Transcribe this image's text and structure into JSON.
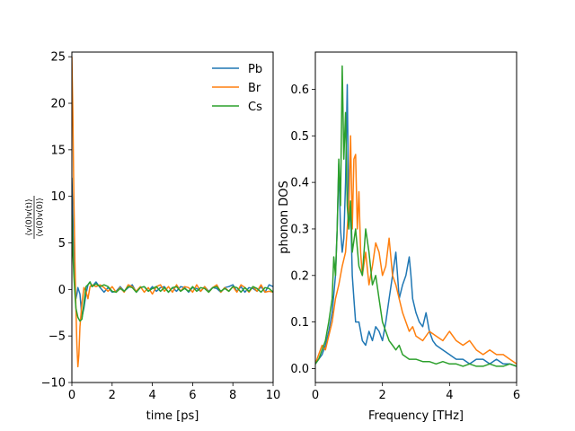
{
  "chart_data": [
    {
      "type": "line",
      "title": "",
      "xlabel": "time [ps]",
      "ylabel": "<v(0)v(t)> / <v(0)v(0)>",
      "ylabel_num": "⟨v(0)v(t)⟩",
      "ylabel_den": "⟨v(0)v(0)⟩",
      "xlim": [
        0,
        10
      ],
      "ylim": [
        -10,
        25.5
      ],
      "xticks": [
        0,
        2,
        4,
        6,
        8,
        10
      ],
      "yticks": [
        -10,
        -5,
        0,
        5,
        10,
        15,
        20,
        25
      ],
      "legend_position": "top-right",
      "series": [
        {
          "name": "Pb",
          "color": "#1f77b4",
          "x": [
            0,
            0.05,
            0.1,
            0.15,
            0.2,
            0.25,
            0.3,
            0.4,
            0.5,
            0.6,
            0.7,
            0.8,
            0.9,
            1.0,
            1.2,
            1.4,
            1.6,
            1.8,
            2.0,
            2.2,
            2.4,
            2.6,
            2.8,
            3.0,
            3.2,
            3.4,
            3.6,
            3.8,
            4.0,
            4.2,
            4.4,
            4.6,
            4.8,
            5.0,
            5.2,
            5.4,
            5.6,
            5.8,
            6.0,
            6.2,
            6.4,
            6.6,
            6.8,
            7.0,
            7.2,
            7.4,
            7.6,
            7.8,
            8.0,
            8.2,
            8.4,
            8.6,
            8.8,
            9.0,
            9.2,
            9.4,
            9.6,
            9.8,
            10.0
          ],
          "values": [
            12,
            8,
            3,
            0.5,
            -1.0,
            -0.5,
            0.2,
            -0.5,
            -3.0,
            -2.0,
            -0.5,
            0.5,
            0.8,
            0.3,
            0.8,
            0.2,
            -0.3,
            0.2,
            -0.3,
            -0.2,
            0.3,
            -0.2,
            0.2,
            0.5,
            -0.3,
            0.2,
            0.3,
            -0.2,
            0.3,
            -0.2,
            0.2,
            0.3,
            -0.3,
            0.2,
            -0.2,
            0.3,
            0.2,
            -0.3,
            0.2,
            0.1,
            -0.2,
            0.3,
            -0.2,
            0.2,
            0.1,
            -0.3,
            0.2,
            0.3,
            0.5,
            -0.2,
            0.3,
            -0.3,
            0.2,
            0.1,
            -0.2,
            0.3,
            -0.3,
            0.5,
            0.3
          ]
        },
        {
          "name": "Br",
          "color": "#ff7f0e",
          "x": [
            0,
            0.05,
            0.1,
            0.15,
            0.2,
            0.25,
            0.3,
            0.35,
            0.4,
            0.5,
            0.6,
            0.7,
            0.8,
            0.9,
            1.0,
            1.2,
            1.4,
            1.6,
            1.8,
            2.0,
            2.2,
            2.4,
            2.6,
            2.8,
            3.0,
            3.2,
            3.4,
            3.6,
            3.8,
            4.0,
            4.2,
            4.4,
            4.6,
            4.8,
            5.0,
            5.2,
            5.4,
            5.6,
            5.8,
            6.0,
            6.2,
            6.4,
            6.6,
            6.8,
            7.0,
            7.2,
            7.4,
            7.6,
            7.8,
            8.0,
            8.2,
            8.4,
            8.6,
            8.8,
            9.0,
            9.2,
            9.4,
            9.6,
            9.8,
            10.0
          ],
          "values": [
            25,
            19,
            10,
            3,
            -2,
            -6,
            -8.3,
            -7,
            -4,
            -1.5,
            0.2,
            -0.2,
            -1.0,
            0.3,
            0.5,
            0.3,
            0.5,
            0.2,
            -0.2,
            0.3,
            -0.3,
            0.2,
            -0.3,
            0.5,
            0.3,
            -0.2,
            0.3,
            -0.3,
            0.2,
            -0.5,
            0.3,
            0.5,
            -0.2,
            0.3,
            -0.3,
            0.5,
            -0.2,
            0.3,
            0.2,
            -0.3,
            0.5,
            -0.2,
            0.3,
            -0.3,
            0.2,
            0.5,
            -0.3,
            0.2,
            -0.2,
            0.3,
            -0.3,
            0.5,
            0.2,
            -0.3,
            0.3,
            -0.2,
            0.5,
            -0.3,
            -0.2,
            -0.3
          ]
        },
        {
          "name": "Cs",
          "color": "#2ca02c",
          "x": [
            0,
            0.05,
            0.1,
            0.15,
            0.2,
            0.3,
            0.4,
            0.5,
            0.6,
            0.7,
            0.8,
            0.9,
            1.0,
            1.2,
            1.4,
            1.6,
            1.8,
            2.0,
            2.2,
            2.4,
            2.6,
            2.8,
            3.0,
            3.2,
            3.4,
            3.6,
            3.8,
            4.0,
            4.2,
            4.4,
            4.6,
            4.8,
            5.0,
            5.2,
            5.4,
            5.6,
            5.8,
            6.0,
            6.2,
            6.4,
            6.6,
            6.8,
            7.0,
            7.2,
            7.4,
            7.6,
            7.8,
            8.0,
            8.2,
            8.4,
            8.6,
            8.8,
            9.0,
            9.2,
            9.4,
            9.6,
            9.8,
            10.0
          ],
          "values": [
            8,
            4,
            1.5,
            -0.5,
            -2.0,
            -3.0,
            -3.4,
            -3.2,
            -1.5,
            0.3,
            0.5,
            0.8,
            0.3,
            0.6,
            0.3,
            0.5,
            0.3,
            -0.2,
            -0.3,
            0.1,
            -0.2,
            0.3,
            0.2,
            -0.3,
            0.2,
            0.3,
            -0.2,
            0.1,
            0.3,
            -0.2,
            0.2,
            -0.3,
            0.2,
            0.3,
            -0.2,
            0.1,
            -0.2,
            0.3,
            -0.2,
            0.2,
            0.1,
            -0.3,
            0.2,
            0.3,
            -0.2,
            0.1,
            -0.2,
            0.3,
            0.2,
            -0.3,
            0.2,
            -0.2,
            0.3,
            0.1,
            -0.3,
            0.2,
            0.1,
            -0.3
          ]
        }
      ]
    },
    {
      "type": "line",
      "title": "",
      "xlabel": "Frequency [THz]",
      "ylabel": "phonon DOS",
      "xlim": [
        0,
        6
      ],
      "ylim": [
        -0.03,
        0.68
      ],
      "xticks": [
        0,
        2,
        4,
        6
      ],
      "yticks": [
        0.0,
        0.1,
        0.2,
        0.3,
        0.4,
        0.5,
        0.6
      ],
      "ytick_labels": [
        "0.0",
        "0.1",
        "0.2",
        "0.3",
        "0.4",
        "0.5",
        "0.6"
      ],
      "series": [
        {
          "name": "Pb",
          "color": "#1f77b4",
          "x": [
            0,
            0.1,
            0.2,
            0.3,
            0.4,
            0.5,
            0.6,
            0.65,
            0.7,
            0.75,
            0.8,
            0.85,
            0.9,
            0.95,
            1.0,
            1.05,
            1.1,
            1.15,
            1.2,
            1.3,
            1.4,
            1.5,
            1.6,
            1.7,
            1.8,
            1.9,
            2.0,
            2.1,
            2.2,
            2.3,
            2.4,
            2.45,
            2.5,
            2.6,
            2.7,
            2.8,
            2.85,
            2.9,
            3.0,
            3.1,
            3.2,
            3.3,
            3.4,
            3.5,
            3.6,
            3.8,
            4.0,
            4.2,
            4.4,
            4.6,
            4.8,
            5.0,
            5.2,
            5.4,
            5.6,
            5.8,
            6.0
          ],
          "values": [
            0.01,
            0.02,
            0.03,
            0.05,
            0.08,
            0.12,
            0.2,
            0.3,
            0.44,
            0.3,
            0.25,
            0.28,
            0.4,
            0.61,
            0.3,
            0.35,
            0.2,
            0.15,
            0.1,
            0.1,
            0.06,
            0.05,
            0.08,
            0.06,
            0.09,
            0.08,
            0.06,
            0.1,
            0.15,
            0.2,
            0.25,
            0.2,
            0.15,
            0.18,
            0.2,
            0.24,
            0.2,
            0.15,
            0.12,
            0.1,
            0.09,
            0.12,
            0.08,
            0.06,
            0.05,
            0.04,
            0.03,
            0.02,
            0.02,
            0.01,
            0.02,
            0.02,
            0.01,
            0.02,
            0.01,
            0.01,
            0.005
          ]
        },
        {
          "name": "Br",
          "color": "#ff7f0e",
          "x": [
            0,
            0.1,
            0.2,
            0.3,
            0.4,
            0.5,
            0.6,
            0.7,
            0.8,
            0.9,
            1.0,
            1.05,
            1.1,
            1.15,
            1.2,
            1.25,
            1.3,
            1.35,
            1.4,
            1.5,
            1.6,
            1.7,
            1.8,
            1.9,
            2.0,
            2.1,
            2.2,
            2.3,
            2.4,
            2.5,
            2.6,
            2.7,
            2.8,
            2.9,
            3.0,
            3.2,
            3.4,
            3.6,
            3.8,
            4.0,
            4.2,
            4.4,
            4.6,
            4.8,
            5.0,
            5.2,
            5.4,
            5.6,
            5.8,
            6.0
          ],
          "values": [
            0.01,
            0.03,
            0.05,
            0.04,
            0.07,
            0.1,
            0.15,
            0.18,
            0.22,
            0.25,
            0.35,
            0.5,
            0.3,
            0.45,
            0.46,
            0.3,
            0.38,
            0.25,
            0.2,
            0.25,
            0.18,
            0.22,
            0.27,
            0.25,
            0.2,
            0.22,
            0.28,
            0.2,
            0.18,
            0.15,
            0.12,
            0.1,
            0.08,
            0.09,
            0.07,
            0.06,
            0.08,
            0.07,
            0.06,
            0.08,
            0.06,
            0.05,
            0.06,
            0.04,
            0.03,
            0.04,
            0.03,
            0.03,
            0.02,
            0.01
          ]
        },
        {
          "name": "Cs",
          "color": "#2ca02c",
          "x": [
            0,
            0.1,
            0.2,
            0.3,
            0.4,
            0.5,
            0.55,
            0.6,
            0.65,
            0.7,
            0.75,
            0.8,
            0.85,
            0.9,
            0.95,
            1.0,
            1.05,
            1.1,
            1.2,
            1.3,
            1.4,
            1.5,
            1.6,
            1.7,
            1.8,
            1.9,
            2.0,
            2.1,
            2.2,
            2.3,
            2.4,
            2.5,
            2.6,
            2.8,
            3.0,
            3.2,
            3.4,
            3.6,
            3.8,
            4.0,
            4.2,
            4.4,
            4.6,
            4.8,
            5.0,
            5.2,
            5.4,
            5.6,
            5.8,
            6.0
          ],
          "values": [
            0.01,
            0.02,
            0.04,
            0.06,
            0.1,
            0.15,
            0.24,
            0.2,
            0.3,
            0.45,
            0.35,
            0.65,
            0.45,
            0.55,
            0.35,
            0.3,
            0.36,
            0.25,
            0.3,
            0.22,
            0.2,
            0.3,
            0.25,
            0.18,
            0.2,
            0.15,
            0.1,
            0.08,
            0.06,
            0.05,
            0.04,
            0.05,
            0.03,
            0.02,
            0.02,
            0.015,
            0.015,
            0.01,
            0.015,
            0.01,
            0.01,
            0.005,
            0.01,
            0.005,
            0.005,
            0.01,
            0.005,
            0.005,
            0.01,
            0.005
          ]
        }
      ]
    }
  ]
}
